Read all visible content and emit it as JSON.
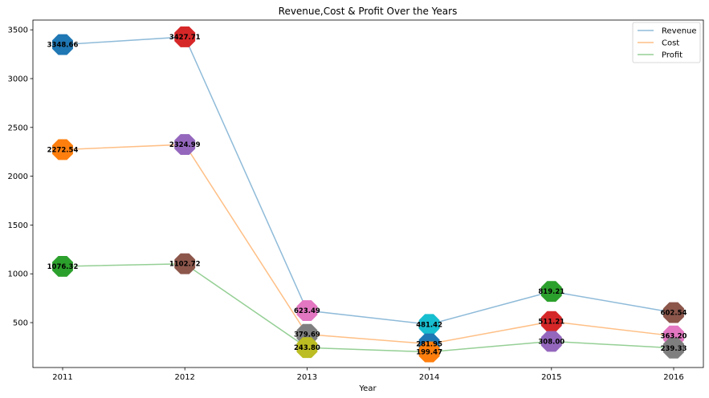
{
  "chart_data": {
    "type": "line",
    "title": "Revenue,Cost & Profit Over the Years",
    "xlabel": "Year",
    "ylabel": "",
    "categories": [
      "2011",
      "2012",
      "2013",
      "2014",
      "2015",
      "2016"
    ],
    "ylim": [
      40,
      3600
    ],
    "yticks": [
      500,
      1000,
      1500,
      2000,
      2500,
      3000,
      3500
    ],
    "grid": false,
    "legend_position": "top-right",
    "series": [
      {
        "name": "Revenue",
        "color": "#1f77b4",
        "values": [
          3348.66,
          3427.71,
          623.49,
          481.42,
          819.21,
          602.54
        ],
        "labels": [
          "3348.66",
          "3427.71",
          "623.49",
          "481.42",
          "819.21",
          "602.54"
        ]
      },
      {
        "name": "Cost",
        "color": "#ff7f0e",
        "values": [
          2272.54,
          2324.99,
          379.69,
          281.95,
          511.21,
          363.2
        ],
        "labels": [
          "2272.54",
          "2324.99",
          "379.69",
          "281.95",
          "511.21",
          "363.20"
        ]
      },
      {
        "name": "Profit",
        "color": "#2ca02c",
        "values": [
          1076.32,
          1102.72,
          243.8,
          199.47,
          308.0,
          239.33
        ],
        "labels": [
          "1076.32",
          "1102.72",
          "243.80",
          "199.47",
          "308.00",
          "239.33"
        ]
      }
    ],
    "marker_colors": [
      [
        "#1f77b4",
        "#d62728",
        "#e377c2",
        "#17becf",
        "#2ca02c",
        "#8c564b"
      ],
      [
        "#ff7f0e",
        "#9467bd",
        "#7f7f7f",
        "#1f77b4",
        "#d62728",
        "#e377c2"
      ],
      [
        "#2ca02c",
        "#8c564b",
        "#bcbd22",
        "#ff7f0e",
        "#9467bd",
        "#7f7f7f"
      ]
    ]
  }
}
